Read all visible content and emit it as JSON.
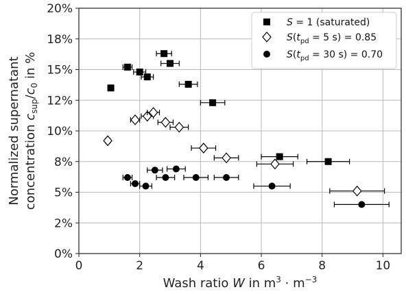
{
  "chart_data": {
    "type": "scatter",
    "xlabel": "Wash ratio W in m³·m⁻³",
    "ylabel": [
      "Normalized supernatant",
      "concentration c_sup/c_0 in %"
    ],
    "xlim": [
      0,
      10.6
    ],
    "ylim": [
      0,
      20
    ],
    "xticks": [
      0,
      2,
      4,
      6,
      8,
      10
    ],
    "xtick_labels": [
      "0",
      "2",
      "4",
      "6",
      "8",
      "10"
    ],
    "yticks": [
      0,
      2.5,
      5,
      7.5,
      10,
      12.5,
      15,
      17.5,
      20
    ],
    "ytick_labels": [
      "0%",
      "2%",
      "5%",
      "8%",
      "10%",
      "12%",
      "15%",
      "18%",
      "20%"
    ],
    "grid": true,
    "legend_position": "top-right",
    "series": [
      {
        "name": "S = 1 (saturated)",
        "marker": "square",
        "points": [
          {
            "x": 1.05,
            "y": 13.5,
            "xerr": 0.08
          },
          {
            "x": 1.6,
            "y": 15.2,
            "xerr": 0.15
          },
          {
            "x": 2.0,
            "y": 14.8,
            "xerr": 0.2
          },
          {
            "x": 2.25,
            "y": 14.4,
            "xerr": 0.2
          },
          {
            "x": 2.8,
            "y": 16.3,
            "xerr": 0.25
          },
          {
            "x": 3.0,
            "y": 15.5,
            "xerr": 0.3
          },
          {
            "x": 3.6,
            "y": 13.8,
            "xerr": 0.3
          },
          {
            "x": 4.4,
            "y": 12.3,
            "xerr": 0.4
          },
          {
            "x": 6.6,
            "y": 7.9,
            "xerr": 0.6
          },
          {
            "x": 8.2,
            "y": 7.5,
            "xerr": 0.7
          }
        ]
      },
      {
        "name": "S(t_pd = 5 s) = 0.85",
        "marker": "diamond",
        "points": [
          {
            "x": 0.95,
            "y": 9.2,
            "xerr": 0.08
          },
          {
            "x": 1.85,
            "y": 10.9,
            "xerr": 0.15
          },
          {
            "x": 2.25,
            "y": 11.2,
            "xerr": 0.2
          },
          {
            "x": 2.45,
            "y": 11.5,
            "xerr": 0.2
          },
          {
            "x": 2.85,
            "y": 10.7,
            "xerr": 0.25
          },
          {
            "x": 3.3,
            "y": 10.3,
            "xerr": 0.3
          },
          {
            "x": 4.1,
            "y": 8.6,
            "xerr": 0.4
          },
          {
            "x": 4.85,
            "y": 7.8,
            "xerr": 0.4
          },
          {
            "x": 6.45,
            "y": 7.3,
            "xerr": 0.6
          },
          {
            "x": 9.15,
            "y": 5.1,
            "xerr": 0.9
          }
        ]
      },
      {
        "name": "S(t_pd = 30 s) = 0.70",
        "marker": "circle",
        "points": [
          {
            "x": 1.6,
            "y": 6.2,
            "xerr": 0.15
          },
          {
            "x": 1.85,
            "y": 5.7,
            "xerr": 0.15
          },
          {
            "x": 2.2,
            "y": 5.5,
            "xerr": 0.2
          },
          {
            "x": 2.5,
            "y": 6.8,
            "xerr": 0.25
          },
          {
            "x": 2.85,
            "y": 6.2,
            "xerr": 0.3
          },
          {
            "x": 3.2,
            "y": 6.9,
            "xerr": 0.3
          },
          {
            "x": 3.85,
            "y": 6.2,
            "xerr": 0.4
          },
          {
            "x": 4.85,
            "y": 6.2,
            "xerr": 0.4
          },
          {
            "x": 6.35,
            "y": 5.5,
            "xerr": 0.6
          },
          {
            "x": 9.3,
            "y": 4.0,
            "xerr": 0.9
          }
        ]
      }
    ]
  }
}
